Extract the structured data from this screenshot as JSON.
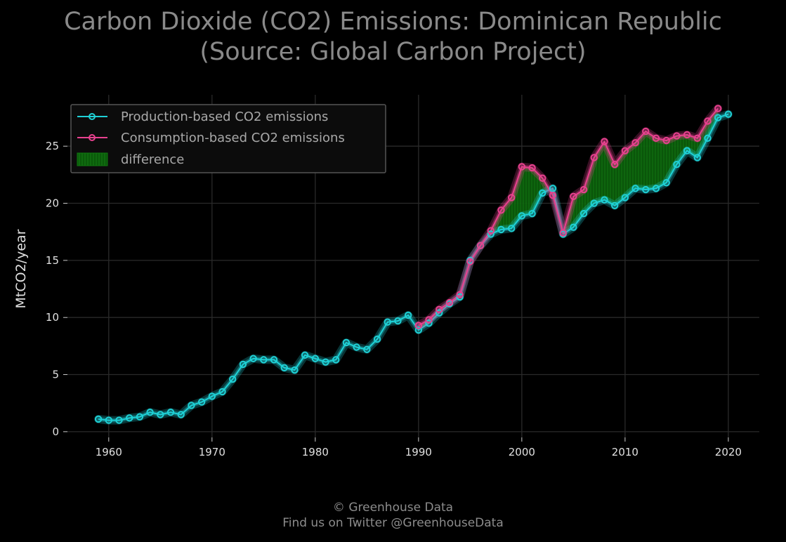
{
  "chart_data": {
    "type": "line",
    "title_line1": "Carbon Dioxide (CO2) Emissions: Dominican Republic",
    "title_line2": "(Source: Global Carbon Project)",
    "ylabel": "MtCO2/year",
    "xlim": [
      1956,
      2023
    ],
    "ylim": [
      -0.5,
      29.5
    ],
    "x_ticks": [
      1960,
      1970,
      1980,
      1990,
      2000,
      2010,
      2020
    ],
    "y_ticks": [
      0,
      5,
      10,
      15,
      20,
      25
    ],
    "grid": true,
    "legend_position": "top-left",
    "series": [
      {
        "name": "Production-based CO2 emissions",
        "color": "#1fd1d6",
        "x": [
          1959,
          1960,
          1961,
          1962,
          1963,
          1964,
          1965,
          1966,
          1967,
          1968,
          1969,
          1970,
          1971,
          1972,
          1973,
          1974,
          1975,
          1976,
          1977,
          1978,
          1979,
          1980,
          1981,
          1982,
          1983,
          1984,
          1985,
          1986,
          1987,
          1988,
          1989,
          1990,
          1991,
          1992,
          1993,
          1994,
          1995,
          1996,
          1997,
          1998,
          1999,
          2000,
          2001,
          2002,
          2003,
          2004,
          2005,
          2006,
          2007,
          2008,
          2009,
          2010,
          2011,
          2012,
          2013,
          2014,
          2015,
          2016,
          2017,
          2018,
          2019,
          2020
        ],
        "values": [
          1.1,
          1.0,
          1.0,
          1.2,
          1.3,
          1.7,
          1.5,
          1.7,
          1.5,
          2.3,
          2.6,
          3.1,
          3.5,
          4.6,
          5.9,
          6.4,
          6.3,
          6.3,
          5.6,
          5.4,
          6.7,
          6.4,
          6.1,
          6.3,
          7.8,
          7.4,
          7.2,
          8.1,
          9.6,
          9.7,
          10.2,
          8.9,
          9.5,
          10.4,
          11.2,
          11.8,
          15.0,
          16.3,
          17.3,
          17.7,
          17.8,
          18.9,
          19.1,
          20.9,
          21.3,
          17.3,
          17.9,
          19.1,
          20.0,
          20.3,
          19.8,
          20.5,
          21.3,
          21.2,
          21.3,
          21.8,
          23.4,
          24.6,
          24.0,
          25.7,
          27.5,
          27.8
        ]
      },
      {
        "name": "Consumption-based CO2 emissions",
        "color": "#e8418f",
        "x": [
          1990,
          1991,
          1992,
          1993,
          1994,
          1995,
          1996,
          1997,
          1998,
          1999,
          2000,
          2001,
          2002,
          2003,
          2004,
          2005,
          2006,
          2007,
          2008,
          2009,
          2010,
          2011,
          2012,
          2013,
          2014,
          2015,
          2016,
          2017,
          2018,
          2019
        ],
        "values": [
          9.3,
          9.8,
          10.7,
          11.3,
          12.0,
          14.9,
          16.3,
          17.6,
          19.4,
          20.5,
          23.2,
          23.1,
          22.2,
          20.7,
          17.4,
          20.6,
          21.2,
          24.0,
          25.4,
          23.4,
          24.6,
          25.3,
          26.3,
          25.7,
          25.5,
          25.9,
          26.0,
          25.7,
          27.2,
          28.3
        ]
      }
    ],
    "difference_label": "difference",
    "difference_color": "#0d6b0d"
  },
  "footer": {
    "line1": "© Greenhouse Data",
    "line2": "Find us on Twitter @GreenhouseData"
  }
}
